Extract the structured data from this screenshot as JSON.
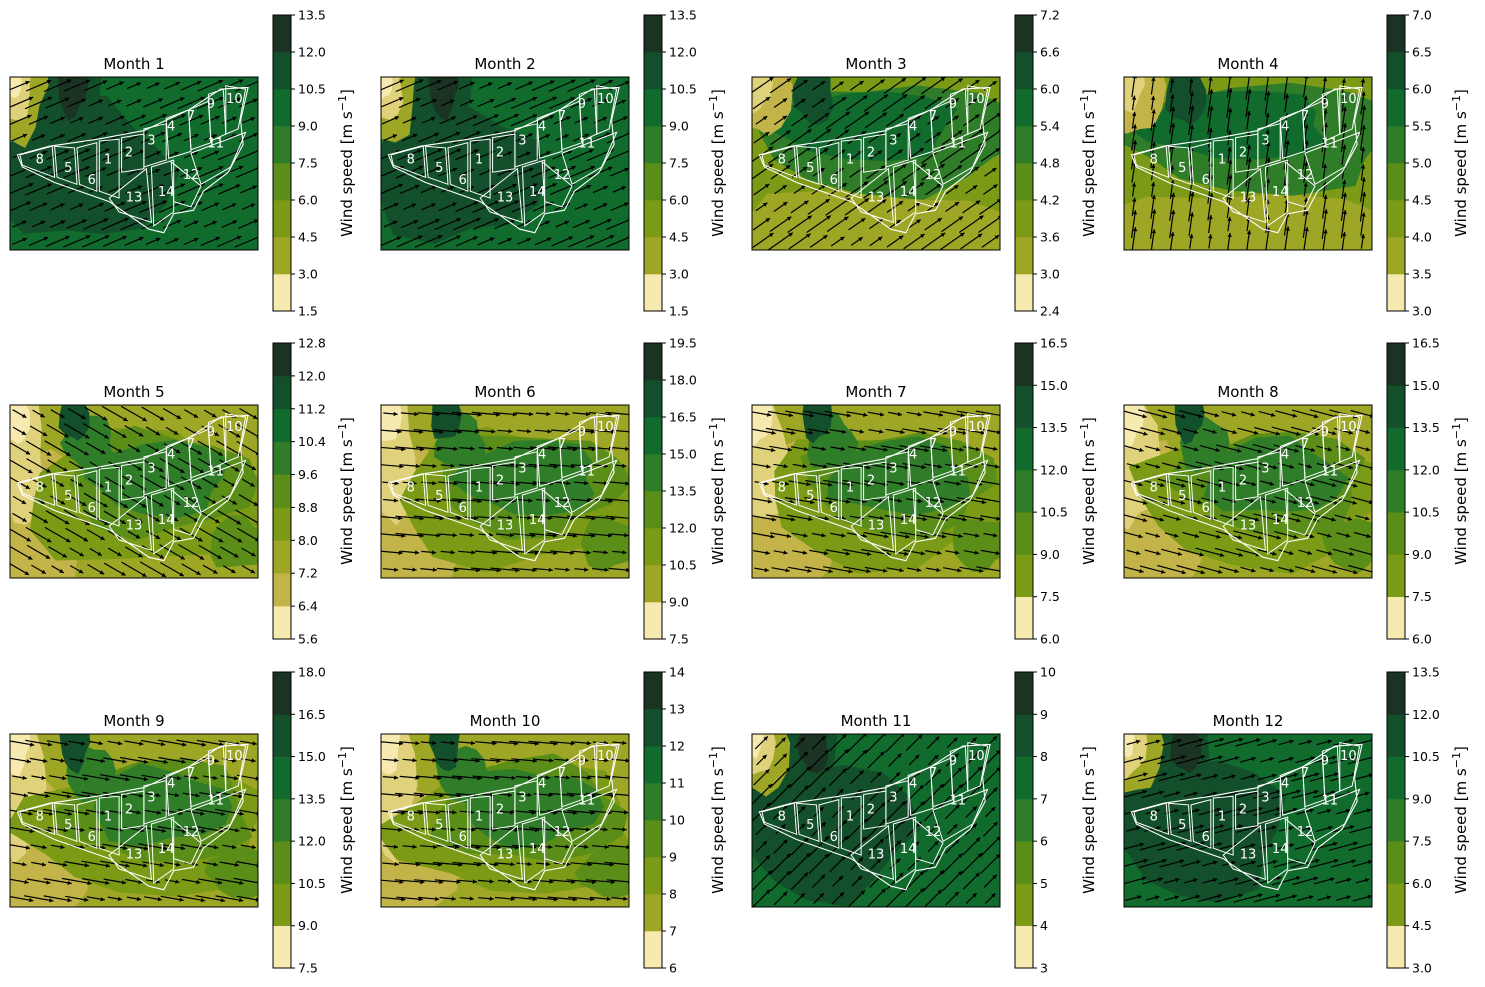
{
  "figure": {
    "colorbar_label_main": "Wind speed [m s",
    "colorbar_label_sup": "−1",
    "colorbar_label_end": "]",
    "colormap": [
      "#f6eab0",
      "#e0d27a",
      "#c3b449",
      "#9ea626",
      "#7b9a15",
      "#5a8e18",
      "#2f7d28",
      "#116b2d",
      "#124f2a",
      "#1b3322"
    ],
    "contour_levels": 8,
    "boundary_color": "#ffffff",
    "arrow_color": "#000000",
    "zone_labels": [
      "1",
      "2",
      "3",
      "4",
      "5",
      "6",
      "7",
      "8",
      "9",
      "10",
      "11",
      "12",
      "13",
      "14"
    ]
  },
  "chart_data": [
    {
      "type": "heatmap",
      "title": "Month 1",
      "wind_dir_deg": 247,
      "pattern": "northwest",
      "cbar_ticks": [
        "1.5",
        "3.0",
        "4.5",
        "6.0",
        "7.5",
        "9.0",
        "10.5",
        "12.0",
        "13.5"
      ]
    },
    {
      "type": "heatmap",
      "title": "Month 2",
      "wind_dir_deg": 247,
      "pattern": "northwest",
      "cbar_ticks": [
        "1.5",
        "3.0",
        "4.5",
        "6.0",
        "7.5",
        "9.0",
        "10.5",
        "12.0",
        "13.5"
      ]
    },
    {
      "type": "heatmap",
      "title": "Month 3",
      "wind_dir_deg": 235,
      "pattern": "band",
      "cbar_ticks": [
        "2.4",
        "3.0",
        "3.6",
        "4.2",
        "4.8",
        "5.4",
        "6.0",
        "6.6",
        "7.2"
      ]
    },
    {
      "type": "heatmap",
      "title": "Month 4",
      "wind_dir_deg": 188,
      "pattern": "band",
      "cbar_ticks": [
        "3.0",
        "3.5",
        "4.0",
        "4.5",
        "5.0",
        "5.5",
        "6.0",
        "6.5",
        "7.0"
      ]
    },
    {
      "type": "heatmap",
      "title": "Month 5",
      "wind_dir_deg": 300,
      "pattern": "summer",
      "cbar_ticks": [
        "5.6",
        "6.4",
        "7.2",
        "8.0",
        "8.8",
        "9.6",
        "10.4",
        "11.2",
        "12.0",
        "12.8"
      ]
    },
    {
      "type": "heatmap",
      "title": "Month 6",
      "wind_dir_deg": 275,
      "pattern": "summer",
      "cbar_ticks": [
        "7.5",
        "9.0",
        "10.5",
        "12.0",
        "13.5",
        "15.0",
        "16.5",
        "18.0",
        "19.5"
      ]
    },
    {
      "type": "heatmap",
      "title": "Month 7",
      "wind_dir_deg": 280,
      "pattern": "summer",
      "cbar_ticks": [
        "6.0",
        "7.5",
        "9.0",
        "10.5",
        "12.0",
        "13.5",
        "15.0",
        "16.5"
      ]
    },
    {
      "type": "heatmap",
      "title": "Month 8",
      "wind_dir_deg": 285,
      "pattern": "summer",
      "cbar_ticks": [
        "6.0",
        "7.5",
        "9.0",
        "10.5",
        "12.0",
        "13.5",
        "15.0",
        "16.5"
      ]
    },
    {
      "type": "heatmap",
      "title": "Month 9",
      "wind_dir_deg": 280,
      "pattern": "summer",
      "cbar_ticks": [
        "7.5",
        "9.0",
        "10.5",
        "12.0",
        "13.5",
        "15.0",
        "16.5",
        "18.0"
      ]
    },
    {
      "type": "heatmap",
      "title": "Month 10",
      "wind_dir_deg": 275,
      "pattern": "summer",
      "cbar_ticks": [
        "6",
        "7",
        "8",
        "9",
        "10",
        "11",
        "12",
        "13",
        "14"
      ]
    },
    {
      "type": "heatmap",
      "title": "Month 11",
      "wind_dir_deg": 225,
      "pattern": "northwest",
      "cbar_ticks": [
        "3",
        "4",
        "5",
        "6",
        "7",
        "8",
        "9",
        "10"
      ]
    },
    {
      "type": "heatmap",
      "title": "Month 12",
      "wind_dir_deg": 255,
      "pattern": "northwest",
      "cbar_ticks": [
        "3.0",
        "4.5",
        "6.0",
        "7.5",
        "9.0",
        "10.5",
        "12.0",
        "13.5"
      ]
    }
  ]
}
